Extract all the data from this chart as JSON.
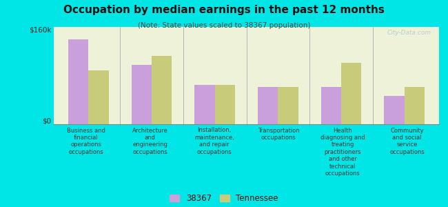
{
  "title": "Occupation by median earnings in the past 12 months",
  "subtitle": "(Note: State values scaled to 38367 population)",
  "categories": [
    "Business and\nfinancial\noperations\noccupations",
    "Architecture\nand\nengineering\noccupations",
    "Installation,\nmaintenance,\nand repair\noccupations",
    "Transportation\noccupations",
    "Health\ndiagnosing and\ntreating\npractitioners\nand other\ntechnical\noccupations",
    "Community\nand social\nservice\noccupations"
  ],
  "values_38367": [
    155000,
    108000,
    72000,
    68000,
    68000,
    52000
  ],
  "values_tennessee": [
    98000,
    125000,
    72000,
    68000,
    112000,
    68000
  ],
  "color_38367": "#c9a0dc",
  "color_tennessee": "#c8cc7a",
  "chart_bg_color": "#eef2d8",
  "outer_background": "#00e5e5",
  "ytick_values": [
    0,
    160000
  ],
  "ytick_labels": [
    "$0",
    "$160k"
  ],
  "ylim": [
    0,
    178000
  ],
  "legend_label_38367": "38367",
  "legend_label_tennessee": "Tennessee",
  "watermark": "City-Data.com"
}
